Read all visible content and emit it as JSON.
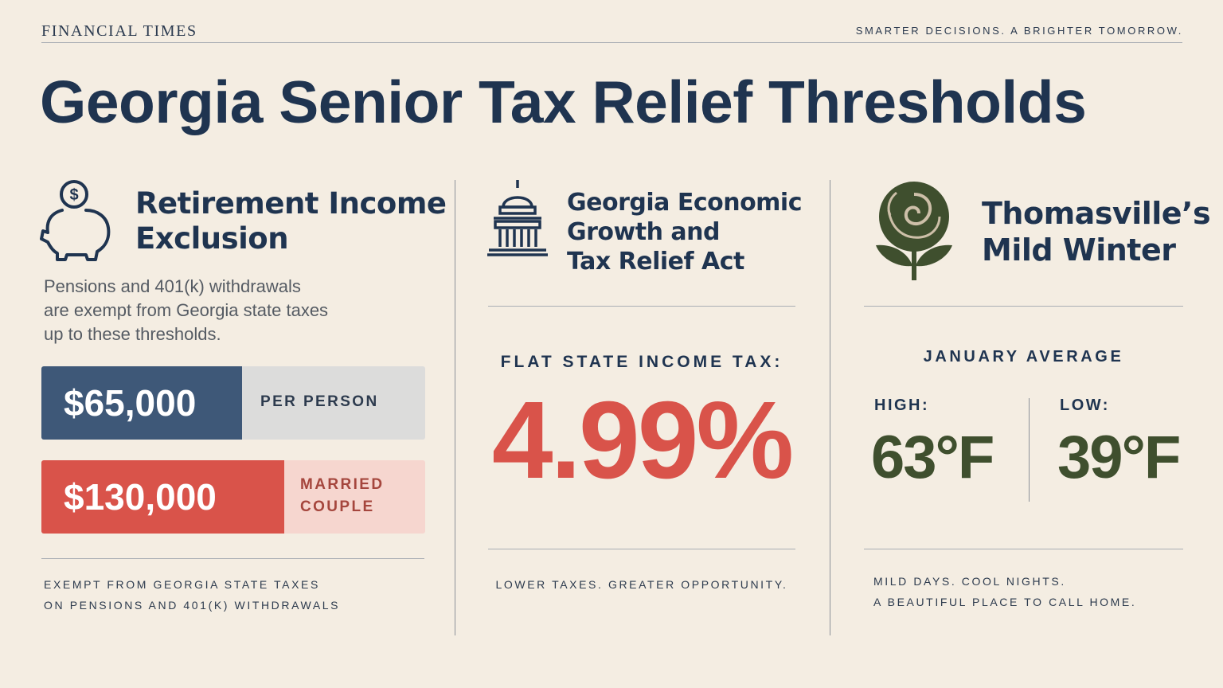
{
  "header": {
    "publisher": "FINANCIAL TIMES",
    "tagline": "SMARTER DECISIONS. A BRIGHTER TOMORROW.",
    "title": "Georgia Senior Tax Relief Thresholds"
  },
  "panels": [
    {
      "heading": [
        "Retirement Income",
        "Exclusion"
      ],
      "description": [
        "Pensions and 401(k) withdrawals",
        "are exempt from Georgia state taxes",
        "up to these thresholds."
      ],
      "thresholds": [
        {
          "amount": "$65,000",
          "label": [
            "PER PERSON"
          ]
        },
        {
          "amount": "$130,000",
          "label": [
            "MARRIED",
            "COUPLE"
          ]
        }
      ],
      "footer": [
        "EXEMPT FROM GEORGIA STATE TAXES",
        "ON PENSIONS AND 401(K) WITHDRAWALS"
      ]
    },
    {
      "heading": [
        "Georgia Economic",
        "Growth and",
        "Tax Relief Act"
      ],
      "label": "FLAT STATE INCOME TAX:",
      "rate": "4.99%",
      "footer": [
        "LOWER TAXES. GREATER OPPORTUNITY."
      ]
    },
    {
      "heading": [
        "Thomasville’s",
        "Mild Winter"
      ],
      "label": "JANUARY AVERAGE",
      "temperatures": [
        {
          "label": "HIGH:",
          "value": "63°F"
        },
        {
          "label": "LOW:",
          "value": "39°F"
        }
      ],
      "footer": [
        "MILD DAYS. COOL NIGHTS.",
        "A BEAUTIFUL PLACE TO CALL HOME."
      ]
    }
  ]
}
